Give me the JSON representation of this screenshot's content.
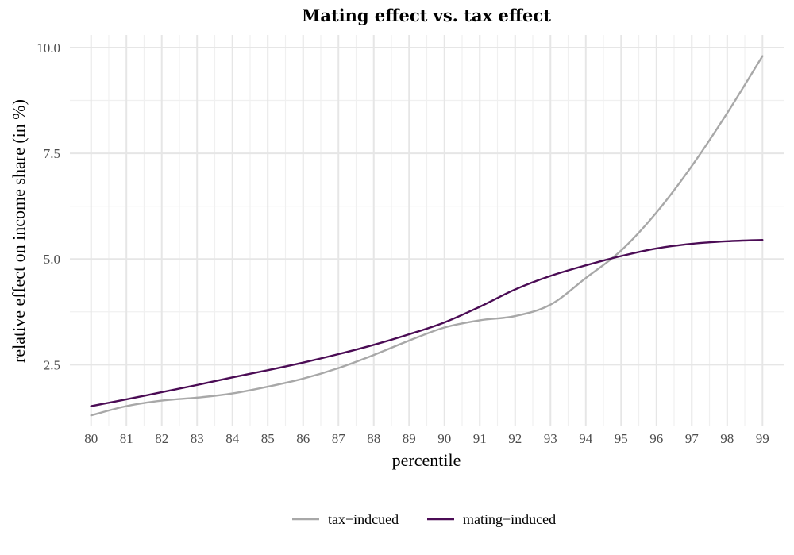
{
  "chart_data": {
    "type": "line",
    "title": "Mating effect vs. tax effect",
    "xlabel": "percentile",
    "ylabel": "relative effect on income share (in %)",
    "xlim": [
      79.4,
      99.6
    ],
    "ylim": [
      1.06,
      10.3
    ],
    "x_ticks": [
      80,
      81,
      82,
      83,
      84,
      85,
      86,
      87,
      88,
      89,
      90,
      91,
      92,
      93,
      94,
      95,
      96,
      97,
      98,
      99
    ],
    "y_ticks": [
      2.5,
      5.0,
      7.5,
      10.0
    ],
    "y_tick_labels": [
      "2.5",
      "5.0",
      "7.5",
      "10.0"
    ],
    "grid": true,
    "legend_position": "bottom",
    "x": [
      80,
      81,
      82,
      83,
      84,
      85,
      86,
      87,
      88,
      89,
      90,
      91,
      92,
      93,
      94,
      95,
      96,
      97,
      98,
      99
    ],
    "series": [
      {
        "name": "tax−indcued",
        "color": "#a8a8a8",
        "values": [
          1.3,
          1.52,
          1.65,
          1.72,
          1.82,
          1.98,
          2.17,
          2.42,
          2.73,
          3.07,
          3.38,
          3.55,
          3.65,
          3.92,
          4.55,
          5.2,
          6.1,
          7.2,
          8.45,
          9.8
        ]
      },
      {
        "name": "mating−induced",
        "color": "#4b0c55",
        "values": [
          1.52,
          1.68,
          1.85,
          2.02,
          2.2,
          2.37,
          2.55,
          2.75,
          2.97,
          3.22,
          3.5,
          3.87,
          4.28,
          4.6,
          4.85,
          5.07,
          5.25,
          5.36,
          5.42,
          5.45
        ]
      }
    ]
  }
}
